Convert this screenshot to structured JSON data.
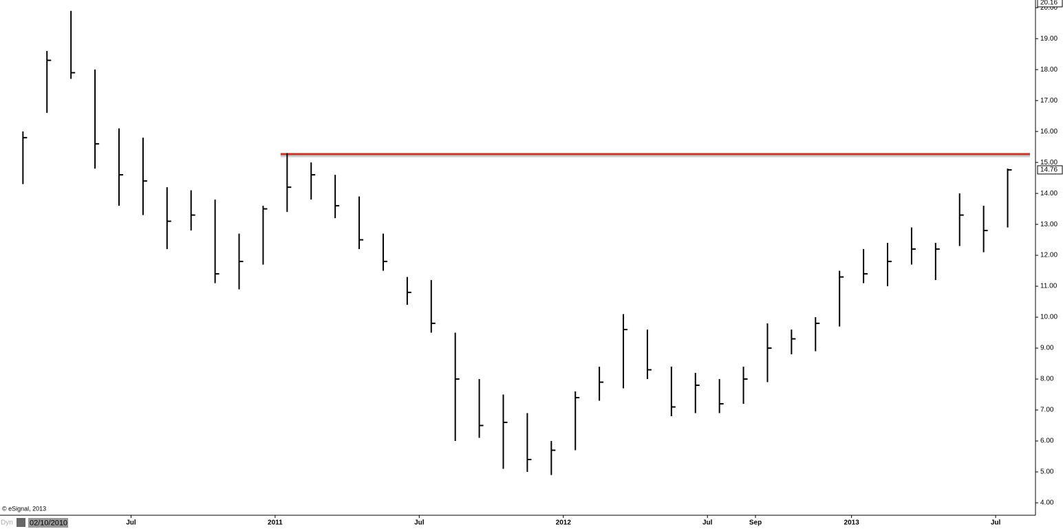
{
  "chart_data": {
    "type": "hlc",
    "copyright": "© eSignal, 2013",
    "mode_label": "Dyn",
    "start_date": "02/10/2010",
    "x": [
      "2010-02",
      "2010-03",
      "2010-04",
      "2010-05",
      "2010-06",
      "2010-07",
      "2010-08",
      "2010-09",
      "2010-10",
      "2010-11",
      "2010-12",
      "2011-01",
      "2011-02",
      "2011-03",
      "2011-04",
      "2011-05",
      "2011-06",
      "2011-07",
      "2011-08",
      "2011-09",
      "2011-10",
      "2011-11",
      "2011-12",
      "2012-01",
      "2012-02",
      "2012-03",
      "2012-04",
      "2012-05",
      "2012-06",
      "2012-07",
      "2012-08",
      "2012-09",
      "2012-10",
      "2012-11",
      "2012-12",
      "2013-01",
      "2013-02",
      "2013-03",
      "2013-04",
      "2013-05",
      "2013-06",
      "2013-07"
    ],
    "high": [
      16.0,
      18.6,
      19.9,
      18.0,
      16.1,
      15.8,
      14.2,
      14.1,
      13.8,
      12.7,
      13.6,
      15.3,
      15.0,
      14.6,
      13.9,
      12.7,
      11.3,
      11.2,
      9.5,
      8.0,
      7.5,
      6.9,
      6.0,
      7.6,
      8.4,
      10.1,
      9.6,
      8.4,
      8.2,
      8.0,
      8.4,
      9.8,
      9.6,
      10.0,
      11.5,
      12.2,
      12.4,
      12.9,
      12.4,
      14.0,
      13.6,
      14.8
    ],
    "low": [
      14.3,
      16.6,
      17.7,
      14.8,
      13.6,
      13.3,
      12.2,
      12.8,
      11.1,
      10.9,
      11.7,
      13.4,
      13.8,
      13.2,
      12.2,
      11.5,
      10.4,
      9.5,
      6.0,
      6.1,
      5.1,
      5.0,
      4.9,
      5.7,
      7.3,
      7.7,
      8.0,
      6.8,
      6.9,
      6.9,
      7.2,
      7.9,
      8.8,
      8.9,
      9.7,
      11.1,
      11.0,
      11.7,
      11.2,
      12.3,
      12.1,
      12.9
    ],
    "close": [
      15.8,
      18.3,
      17.9,
      15.6,
      14.6,
      14.4,
      13.1,
      13.3,
      11.4,
      11.8,
      13.5,
      14.2,
      14.6,
      13.6,
      12.5,
      11.8,
      10.8,
      9.8,
      8.0,
      6.5,
      6.6,
      5.4,
      5.7,
      7.4,
      7.9,
      9.6,
      8.3,
      7.1,
      7.8,
      7.2,
      8.0,
      9.0,
      9.3,
      9.8,
      11.3,
      11.4,
      11.8,
      12.2,
      12.2,
      13.3,
      12.8,
      14.76
    ],
    "color": "#000000",
    "xlim": [
      "2010-01",
      "2013-08"
    ],
    "xticks": [
      {
        "value": "2010-07",
        "label": "Jul"
      },
      {
        "value": "2011-01",
        "label": "2011"
      },
      {
        "value": "2011-07",
        "label": "Jul"
      },
      {
        "value": "2012-01",
        "label": "2012"
      },
      {
        "value": "2012-07",
        "label": "Jul"
      },
      {
        "value": "2012-09",
        "label": "Sep"
      },
      {
        "value": "2013-01",
        "label": "2013"
      },
      {
        "value": "2013-07",
        "label": "Jul"
      }
    ],
    "ylim": [
      3.6,
      20.16
    ],
    "yticks": [
      {
        "value": 4,
        "label": "4.00"
      },
      {
        "value": 5,
        "label": "5.00"
      },
      {
        "value": 6,
        "label": "6.00"
      },
      {
        "value": 7,
        "label": "7.00"
      },
      {
        "value": 8,
        "label": "8.00"
      },
      {
        "value": 9,
        "label": "9.00"
      },
      {
        "value": 10,
        "label": "10.00"
      },
      {
        "value": 11,
        "label": "11.00"
      },
      {
        "value": 12,
        "label": "12.00"
      },
      {
        "value": 13,
        "label": "13.00"
      },
      {
        "value": 14,
        "label": "14.00"
      },
      {
        "value": 15,
        "label": "15.00"
      },
      {
        "value": 16,
        "label": "16.00"
      },
      {
        "value": 17,
        "label": "17.00"
      },
      {
        "value": 18,
        "label": "18.00"
      },
      {
        "value": 19,
        "label": "19.00"
      },
      {
        "value": 20,
        "label": "20.00"
      }
    ],
    "resistance": {
      "value": 15.27,
      "start": "2011-01",
      "color": "#c0392b"
    }
  }
}
